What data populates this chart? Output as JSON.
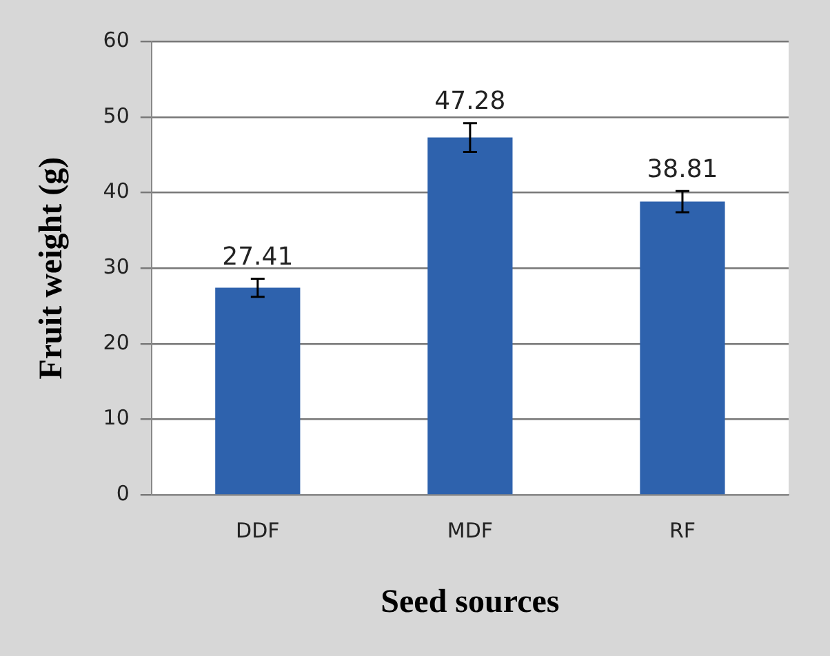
{
  "chart_data": {
    "type": "bar",
    "categories": [
      "DDF",
      "MDF",
      "RF"
    ],
    "values": [
      27.41,
      47.28,
      38.81
    ],
    "errors": [
      1.2,
      1.9,
      1.4
    ],
    "color": "#2e62ad",
    "ylim": [
      0,
      60
    ],
    "yticks": [
      0,
      10,
      20,
      30,
      40,
      50,
      60
    ],
    "grid": "y",
    "data_labels": true,
    "xlabel": "Seed sources",
    "ylabel": "Fruit weight (g)",
    "legend": false
  }
}
